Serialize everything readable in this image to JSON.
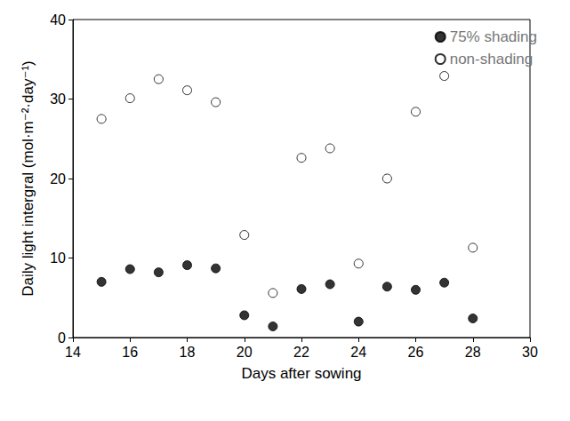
{
  "chart_data": {
    "type": "scatter",
    "x_label": "Days after sowing",
    "y_label": "Daily light intergral (mol·m⁻²·day⁻¹)",
    "xlim": [
      14,
      30
    ],
    "xticks": [
      14,
      16,
      18,
      20,
      22,
      24,
      26,
      28,
      30
    ],
    "ylim": [
      0,
      40
    ],
    "yticks": [
      0,
      10,
      20,
      30,
      40
    ],
    "grid": false,
    "legend": "upper right",
    "x": [
      15,
      16,
      17,
      18,
      19,
      20,
      21,
      22,
      23,
      24,
      25,
      26,
      27,
      28
    ],
    "series": [
      {
        "name": "75% shading",
        "color": "#000000",
        "marker": "filled",
        "values": [
          7.0,
          8.6,
          8.2,
          9.1,
          8.7,
          2.8,
          1.4,
          6.1,
          6.7,
          2.0,
          6.4,
          6.0,
          6.9,
          2.4
        ]
      },
      {
        "name": "non-shading",
        "color": "#000000",
        "marker": "open",
        "values": [
          27.5,
          30.1,
          32.5,
          31.1,
          29.6,
          12.9,
          5.6,
          22.6,
          23.8,
          9.3,
          20.0,
          28.4,
          32.9,
          11.3
        ]
      }
    ]
  }
}
